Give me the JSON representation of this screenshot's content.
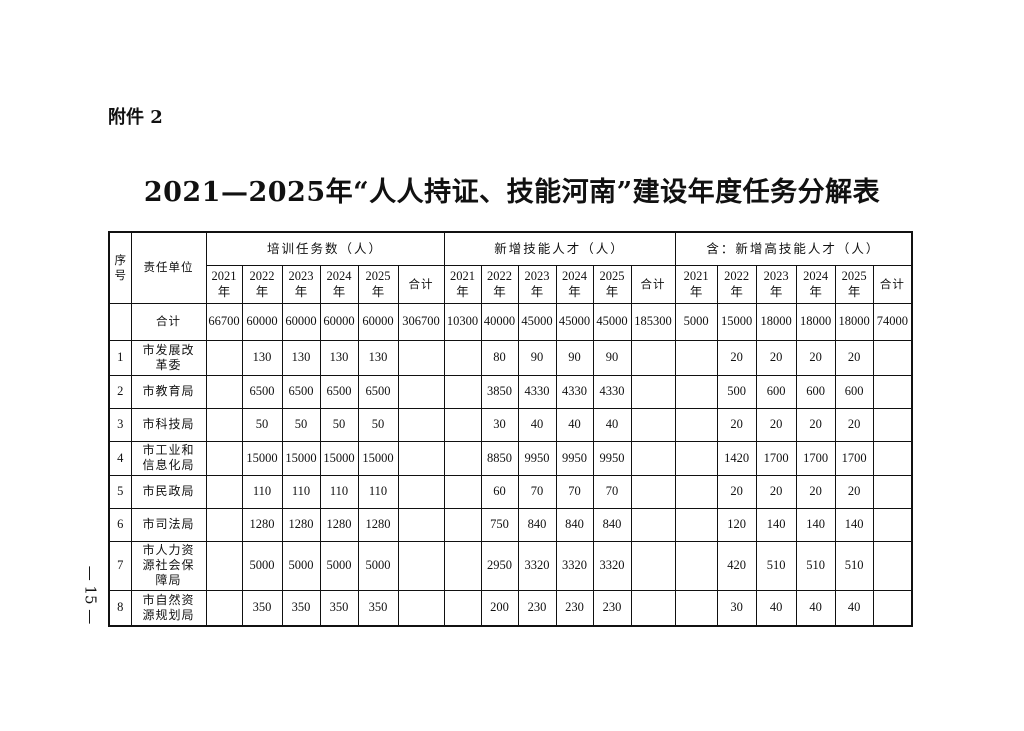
{
  "attachment": "附件 2",
  "title": "2021—2025年“人人持证、技能河南”建设年度任务分解表",
  "page_number": "— 15 —",
  "headers": {
    "seq": "序号",
    "unit": "责任单位",
    "groups": [
      "培训任务数（人）",
      "新增技能人才（人）",
      "含：新增高技能人才（人）"
    ],
    "years": [
      "2021年",
      "2022年",
      "2023年",
      "2024年",
      "2025年",
      "合计"
    ]
  },
  "total_row": {
    "label": "合计",
    "values": [
      "66700",
      "60000",
      "60000",
      "60000",
      "60000",
      "306700",
      "10300",
      "40000",
      "45000",
      "45000",
      "45000",
      "185300",
      "5000",
      "15000",
      "18000",
      "18000",
      "18000",
      "74000"
    ]
  },
  "rows": [
    {
      "seq": "1",
      "unit": "市发展改革委",
      "values": [
        "",
        "130",
        "130",
        "130",
        "130",
        "",
        "",
        "80",
        "90",
        "90",
        "90",
        "",
        "",
        "20",
        "20",
        "20",
        "20",
        ""
      ]
    },
    {
      "seq": "2",
      "unit": "市教育局",
      "values": [
        "",
        "6500",
        "6500",
        "6500",
        "6500",
        "",
        "",
        "3850",
        "4330",
        "4330",
        "4330",
        "",
        "",
        "500",
        "600",
        "600",
        "600",
        ""
      ]
    },
    {
      "seq": "3",
      "unit": "市科技局",
      "values": [
        "",
        "50",
        "50",
        "50",
        "50",
        "",
        "",
        "30",
        "40",
        "40",
        "40",
        "",
        "",
        "20",
        "20",
        "20",
        "20",
        ""
      ]
    },
    {
      "seq": "4",
      "unit": "市工业和信息化局",
      "values": [
        "",
        "15000",
        "15000",
        "15000",
        "15000",
        "",
        "",
        "8850",
        "9950",
        "9950",
        "9950",
        "",
        "",
        "1420",
        "1700",
        "1700",
        "1700",
        ""
      ]
    },
    {
      "seq": "5",
      "unit": "市民政局",
      "values": [
        "",
        "110",
        "110",
        "110",
        "110",
        "",
        "",
        "60",
        "70",
        "70",
        "70",
        "",
        "",
        "20",
        "20",
        "20",
        "20",
        ""
      ]
    },
    {
      "seq": "6",
      "unit": "市司法局",
      "values": [
        "",
        "1280",
        "1280",
        "1280",
        "1280",
        "",
        "",
        "750",
        "840",
        "840",
        "840",
        "",
        "",
        "120",
        "140",
        "140",
        "140",
        ""
      ]
    },
    {
      "seq": "7",
      "unit": "市人力资源社会保障局",
      "values": [
        "",
        "5000",
        "5000",
        "5000",
        "5000",
        "",
        "",
        "2950",
        "3320",
        "3320",
        "3320",
        "",
        "",
        "420",
        "510",
        "510",
        "510",
        ""
      ]
    },
    {
      "seq": "8",
      "unit": "市自然资源规划局",
      "values": [
        "",
        "350",
        "350",
        "350",
        "350",
        "",
        "",
        "200",
        "230",
        "230",
        "230",
        "",
        "",
        "30",
        "40",
        "40",
        "40",
        ""
      ]
    }
  ]
}
